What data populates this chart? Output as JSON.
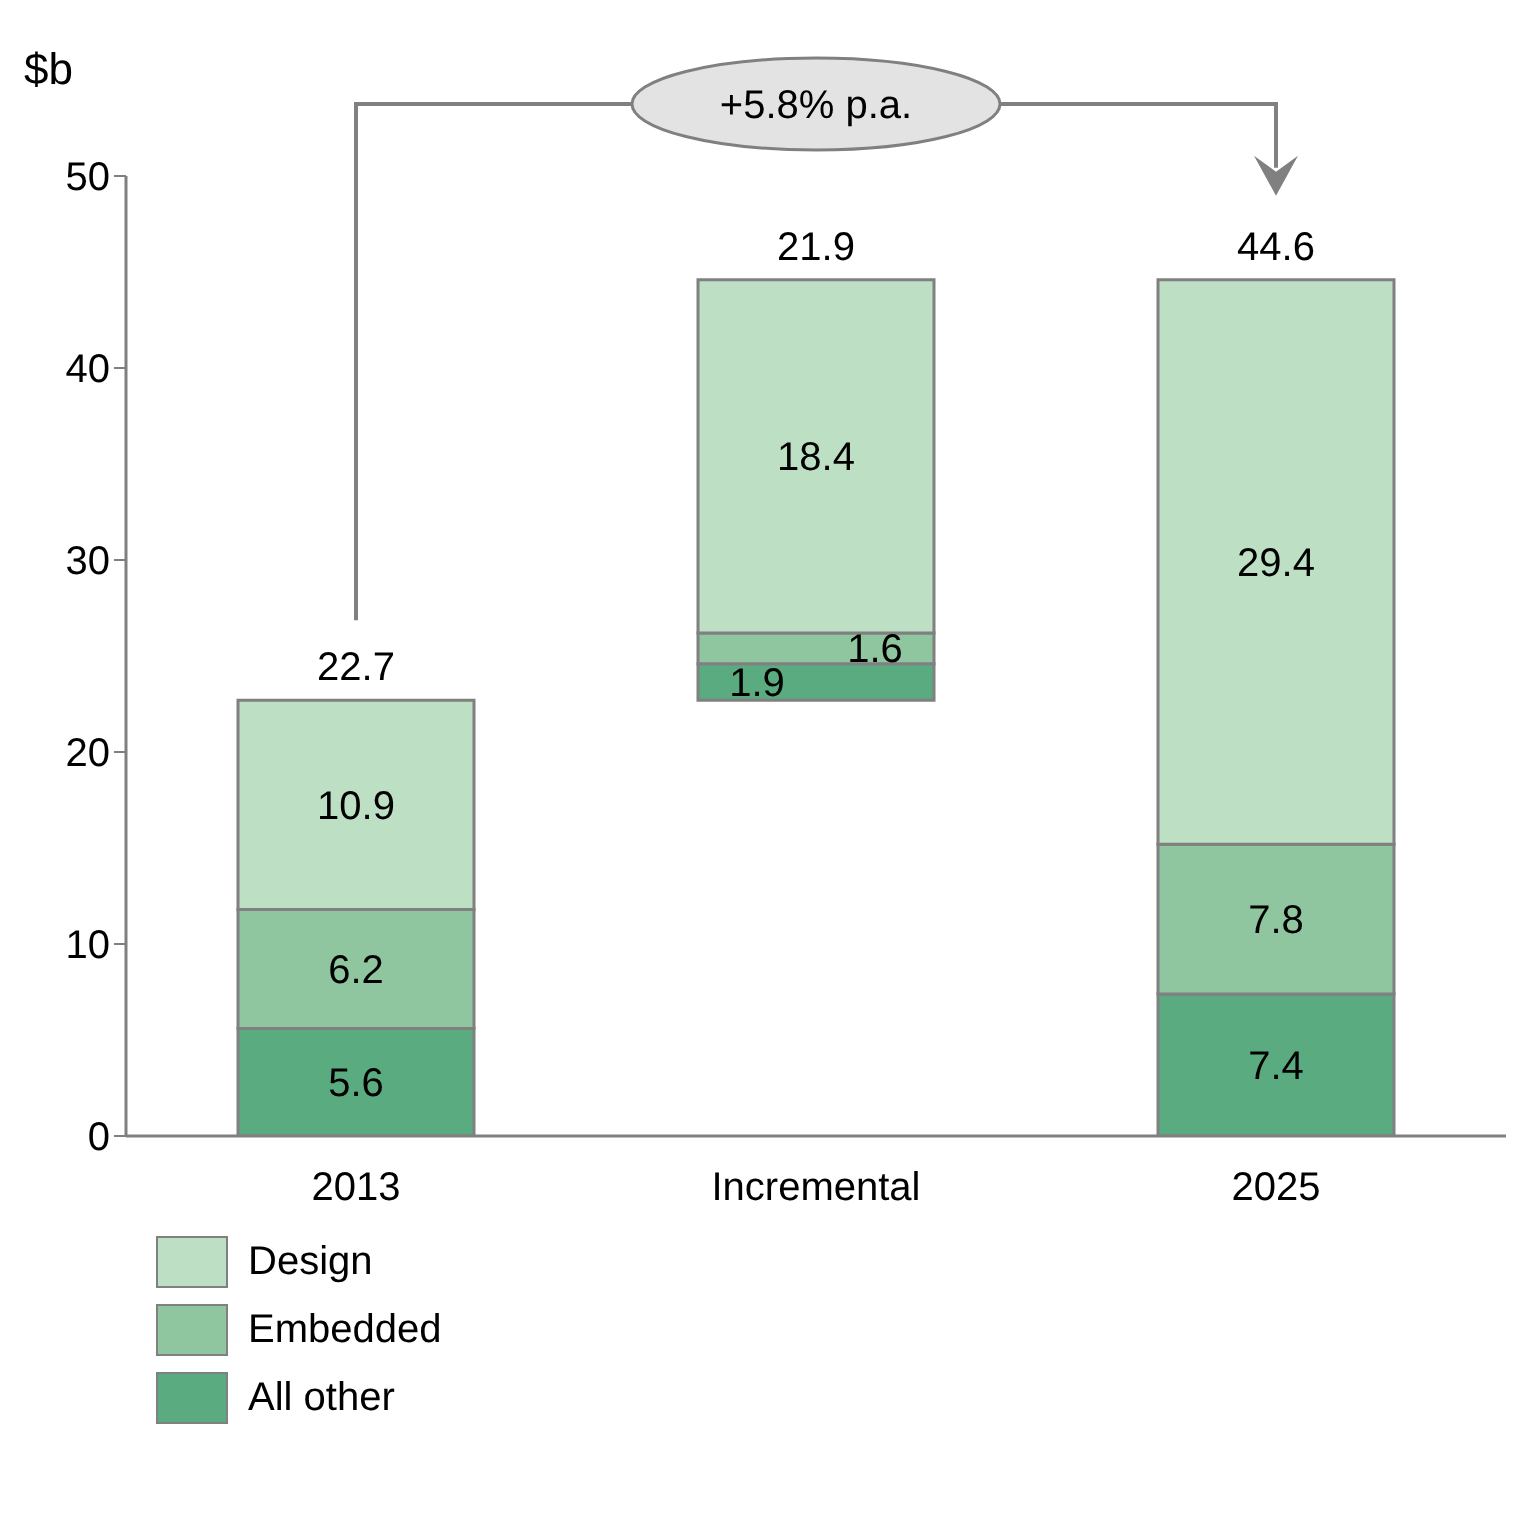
{
  "chart_data": {
    "type": "bar",
    "ylabel": "$b",
    "categories": [
      "2013",
      "Incremental",
      "2025"
    ],
    "series": [
      {
        "name": "All other",
        "color": "#5aac80",
        "values": [
          5.6,
          1.9,
          7.4
        ],
        "base": [
          0,
          22.7,
          0
        ]
      },
      {
        "name": "Embedded",
        "color": "#8fc6a0",
        "values": [
          6.2,
          1.6,
          7.8
        ],
        "base": [
          5.6,
          24.6,
          7.4
        ]
      },
      {
        "name": "Design",
        "color": "#bddfc4",
        "values": [
          10.9,
          18.4,
          29.4
        ],
        "base": [
          11.8,
          26.2,
          15.2
        ]
      }
    ],
    "totals": [
      "22.7",
      "21.9",
      "44.6"
    ],
    "data_labels": true,
    "annotations": [
      "+5.8% p.a."
    ],
    "ylim": [
      0,
      50
    ],
    "yticks": [
      0,
      10,
      20,
      30,
      40,
      50
    ],
    "legend": "bottom left"
  }
}
